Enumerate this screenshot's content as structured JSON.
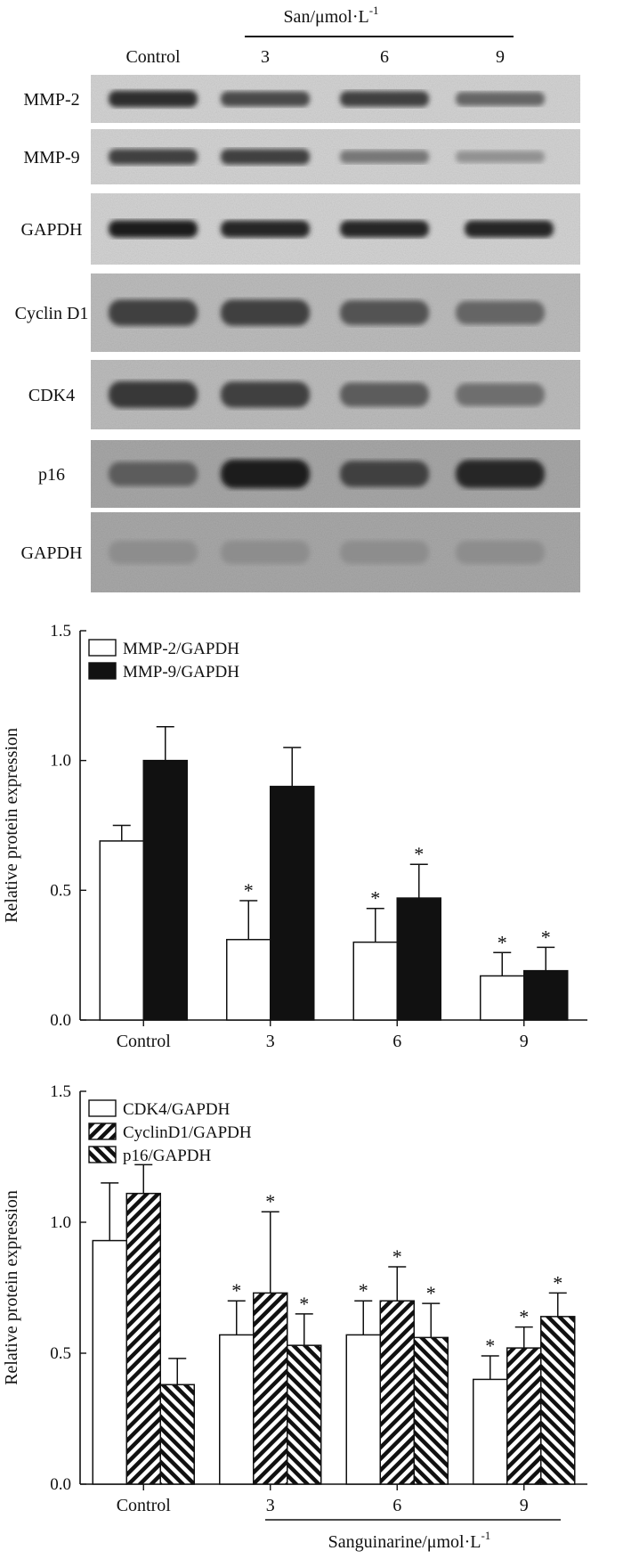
{
  "blot": {
    "treatment_label": "San/μmol·L",
    "treatment_exp": "-1",
    "columns": [
      "Control",
      "3",
      "6",
      "9"
    ],
    "rows": [
      {
        "label": "MMP-2",
        "intensity": [
          0.85,
          0.7,
          0.75,
          0.55
        ],
        "tone": "dark"
      },
      {
        "label": "MMP-9",
        "intensity": [
          0.75,
          0.75,
          0.45,
          0.3
        ],
        "tone": "dark"
      },
      {
        "label": "GAPDH",
        "intensity": [
          0.95,
          0.9,
          0.9,
          0.9
        ],
        "tone": "dark"
      },
      {
        "label": "Cyclin D1",
        "intensity": [
          0.75,
          0.75,
          0.65,
          0.55
        ],
        "tone": "gray"
      },
      {
        "label": "CDK4",
        "intensity": [
          0.8,
          0.75,
          0.6,
          0.5
        ],
        "tone": "gray"
      },
      {
        "label": "p16",
        "intensity": [
          0.6,
          0.95,
          0.75,
          0.9
        ],
        "tone": "darkgray"
      },
      {
        "label": "GAPDH",
        "intensity": [
          0.55,
          0.55,
          0.55,
          0.55
        ],
        "tone": "light"
      }
    ]
  },
  "chart_data": [
    {
      "type": "bar",
      "ylabel": "Relative protein expression",
      "xlabel": "",
      "ylim": [
        0,
        1.5
      ],
      "yticks": [
        "0.0",
        "0.5",
        "1.0",
        "1.5"
      ],
      "categories": [
        "Control",
        "3",
        "6",
        "9"
      ],
      "legend_position": "top-left",
      "series": [
        {
          "name": "MMP-2/GAPDH",
          "fill": "white",
          "values": [
            0.69,
            0.31,
            0.3,
            0.17
          ],
          "errors": [
            0.06,
            0.15,
            0.13,
            0.09
          ],
          "significant": [
            false,
            true,
            true,
            true
          ]
        },
        {
          "name": "MMP-9/GAPDH",
          "fill": "black",
          "values": [
            1.0,
            0.9,
            0.47,
            0.19
          ],
          "errors": [
            0.13,
            0.15,
            0.13,
            0.09
          ],
          "significant": [
            false,
            false,
            true,
            true
          ]
        }
      ],
      "significance_marker": "*"
    },
    {
      "type": "bar",
      "ylabel": "Relative protein expression",
      "xlabel": "Sanguinarine/μmol·L",
      "xlabel_exp": "-1",
      "ylim": [
        0,
        1.5
      ],
      "yticks": [
        "0.0",
        "0.5",
        "1.0",
        "1.5"
      ],
      "categories": [
        "Control",
        "3",
        "6",
        "9"
      ],
      "legend_position": "top-left",
      "series": [
        {
          "name": "CDK4/GAPDH",
          "fill": "white",
          "values": [
            0.93,
            0.57,
            0.57,
            0.4
          ],
          "errors": [
            0.22,
            0.13,
            0.13,
            0.09
          ],
          "significant": [
            false,
            true,
            true,
            true
          ]
        },
        {
          "name": "CyclinD1/GAPDH",
          "fill": "hatch-back",
          "values": [
            1.11,
            0.73,
            0.7,
            0.52
          ],
          "errors": [
            0.11,
            0.31,
            0.13,
            0.08
          ],
          "significant": [
            false,
            true,
            true,
            true
          ]
        },
        {
          "name": "p16/GAPDH",
          "fill": "hatch-forward",
          "values": [
            0.38,
            0.53,
            0.56,
            0.64
          ],
          "errors": [
            0.1,
            0.12,
            0.13,
            0.09
          ],
          "significant": [
            false,
            true,
            true,
            true
          ]
        }
      ],
      "significance_marker": "*"
    }
  ]
}
